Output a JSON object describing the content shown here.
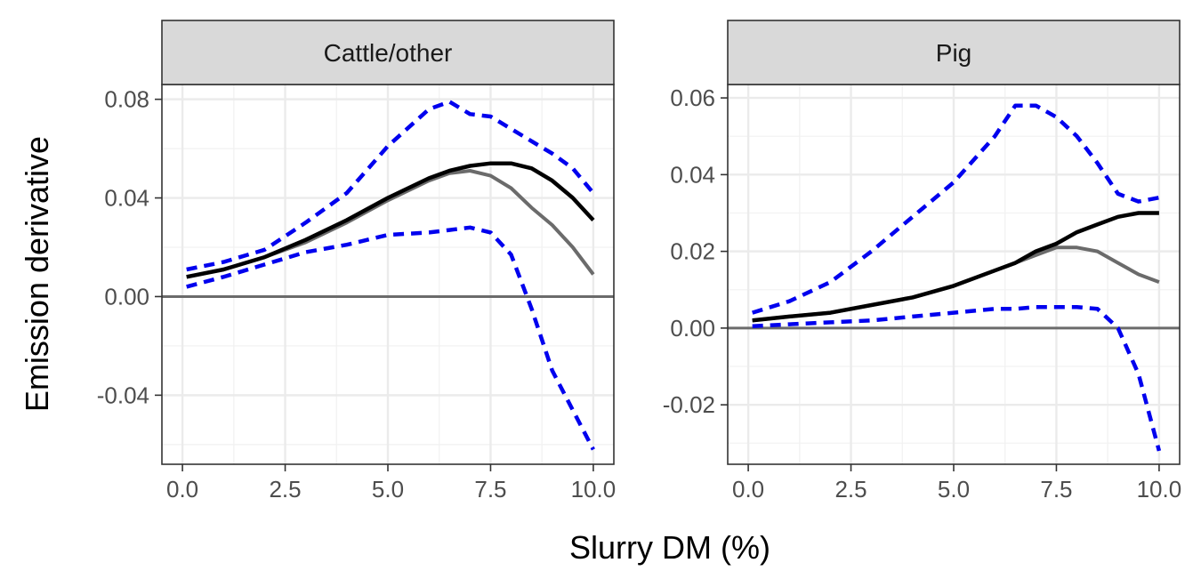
{
  "chart_data": {
    "type": "line",
    "xlabel": "Slurry DM (%)",
    "ylabel": "Emission derivative",
    "x_ticks": [
      "0.0",
      "2.5",
      "5.0",
      "7.5",
      "10.0"
    ],
    "x_tick_values": [
      0,
      2.5,
      5,
      7.5,
      10
    ],
    "xlim": [
      -0.5,
      10.5
    ],
    "grid": true,
    "legend": "none",
    "colors": {
      "fit": "#000000",
      "mean": "#6b6b6b",
      "bounds": "#0000ee",
      "zero_line": "#6b6b6b",
      "strip": "#d9d9d9"
    },
    "panels": [
      {
        "title": "Cattle/other",
        "ylim": [
          -0.068,
          0.086
        ],
        "y_ticks": [
          "0.08",
          "0.04",
          "0.00",
          "-0.04"
        ],
        "y_tick_values": [
          0.08,
          0.04,
          0,
          -0.04
        ],
        "x": [
          0.1,
          1,
          2,
          3,
          4,
          5,
          6,
          6.5,
          7,
          7.5,
          8,
          8.5,
          9,
          9.5,
          10
        ],
        "series": [
          {
            "role": "upper",
            "style": "dashed",
            "values": [
              0.011,
              0.014,
              0.019,
              0.03,
              0.042,
              0.061,
              0.076,
              0.079,
              0.074,
              0.073,
              0.068,
              0.063,
              0.058,
              0.052,
              0.042
            ]
          },
          {
            "role": "fit",
            "style": "solid",
            "values": [
              0.008,
              0.011,
              0.016,
              0.023,
              0.031,
              0.04,
              0.048,
              0.051,
              0.053,
              0.054,
              0.054,
              0.052,
              0.047,
              0.04,
              0.031
            ]
          },
          {
            "role": "mean",
            "style": "solid",
            "values": [
              0.008,
              0.011,
              0.016,
              0.022,
              0.03,
              0.039,
              0.047,
              0.05,
              0.051,
              0.049,
              0.044,
              0.036,
              0.029,
              0.02,
              0.009
            ]
          },
          {
            "role": "lower",
            "style": "dashed",
            "values": [
              0.004,
              0.008,
              0.013,
              0.018,
              0.021,
              0.025,
              0.026,
              0.027,
              0.028,
              0.026,
              0.017,
              -0.005,
              -0.03,
              -0.046,
              -0.062
            ]
          }
        ]
      },
      {
        "title": "Pig",
        "ylim": [
          -0.0355,
          0.0635
        ],
        "y_ticks": [
          "0.06",
          "0.04",
          "0.02",
          "0.00",
          "-0.02"
        ],
        "y_tick_values": [
          0.06,
          0.04,
          0.02,
          0,
          -0.02
        ],
        "x": [
          0.1,
          1,
          2,
          3,
          4,
          5,
          6,
          6.5,
          7,
          7.5,
          8,
          8.5,
          9,
          9.5,
          10
        ],
        "series": [
          {
            "role": "upper",
            "style": "dashed",
            "values": [
              0.004,
              0.007,
              0.012,
              0.02,
              0.029,
              0.038,
              0.05,
              0.058,
              0.058,
              0.055,
              0.05,
              0.043,
              0.035,
              0.033,
              0.034
            ]
          },
          {
            "role": "fit",
            "style": "solid",
            "values": [
              0.002,
              0.003,
              0.004,
              0.006,
              0.008,
              0.011,
              0.015,
              0.017,
              0.02,
              0.022,
              0.025,
              0.027,
              0.029,
              0.03,
              0.03
            ]
          },
          {
            "role": "mean",
            "style": "solid",
            "values": [
              0.002,
              0.003,
              0.004,
              0.006,
              0.008,
              0.011,
              0.015,
              0.017,
              0.019,
              0.021,
              0.021,
              0.02,
              0.017,
              0.014,
              0.012
            ]
          },
          {
            "role": "lower",
            "style": "dashed",
            "values": [
              0.0005,
              0.001,
              0.0015,
              0.002,
              0.003,
              0.004,
              0.005,
              0.005,
              0.0055,
              0.0055,
              0.0055,
              0.005,
              0.0,
              -0.012,
              -0.032
            ]
          }
        ]
      }
    ]
  }
}
